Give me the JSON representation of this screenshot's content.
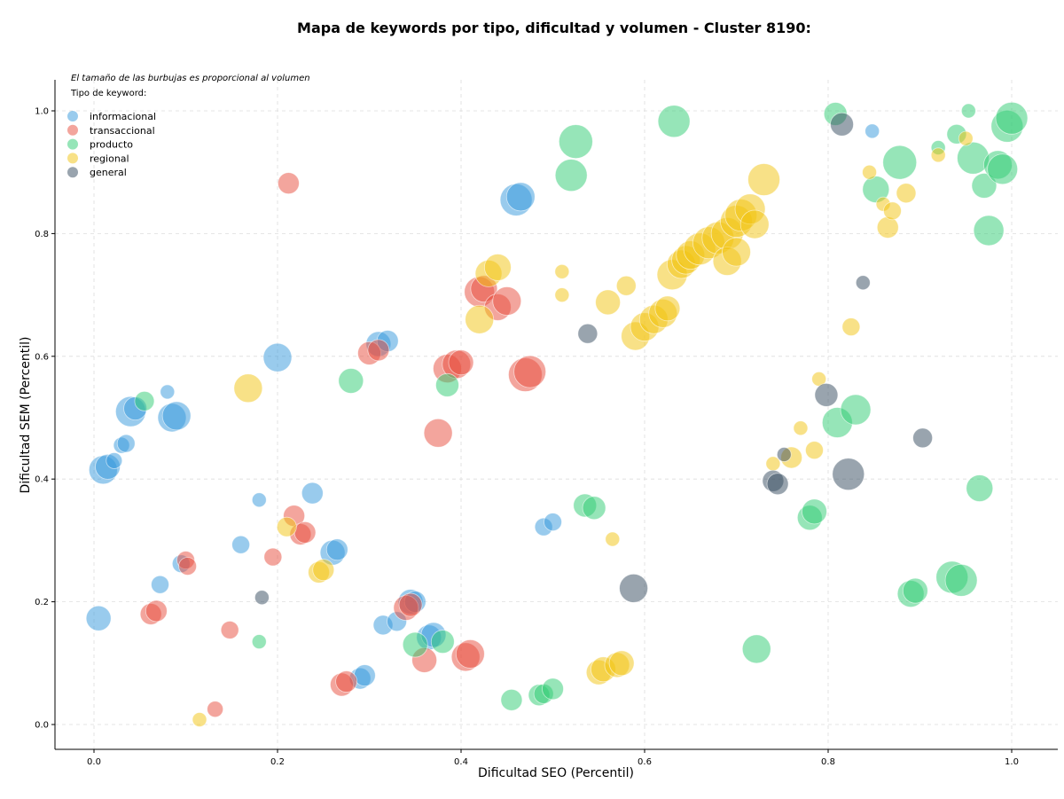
{
  "chart_data": {
    "type": "scatter",
    "title": "Mapa de keywords por tipo, dificultad y volumen - Cluster 8190:",
    "xlabel": "Dificultad SEO (Percentil)",
    "ylabel": "Dificultad SEM (Percentil)",
    "xlim": [
      -0.045,
      1.05
    ],
    "ylim": [
      -0.04,
      1.05
    ],
    "xticks": [
      0.0,
      0.2,
      0.4,
      0.6,
      0.8,
      1.0
    ],
    "yticks": [
      0.0,
      0.2,
      0.4,
      0.6,
      0.8,
      1.0
    ],
    "xtick_labels": [
      "0.0",
      "0.2",
      "0.4",
      "0.6",
      "0.8",
      "1.0"
    ],
    "ytick_labels": [
      "0.0",
      "0.2",
      "0.4",
      "0.6",
      "0.8",
      "1.0"
    ],
    "grid": true,
    "legend_position": "top-left",
    "size_note": "El tamaño de las burbujas es proporcional al volumen",
    "legend_title": "Tipo de keyword:",
    "series": [
      {
        "name": "informacional",
        "color": "#3498db",
        "points": [
          [
            0.005,
            0.173,
            14
          ],
          [
            0.01,
            0.415,
            16
          ],
          [
            0.015,
            0.42,
            14
          ],
          [
            0.022,
            0.43,
            9
          ],
          [
            0.03,
            0.455,
            9
          ],
          [
            0.035,
            0.458,
            10
          ],
          [
            0.04,
            0.51,
            17
          ],
          [
            0.045,
            0.515,
            13
          ],
          [
            0.08,
            0.542,
            8
          ],
          [
            0.085,
            0.5,
            16
          ],
          [
            0.09,
            0.503,
            16
          ],
          [
            0.095,
            0.262,
            10
          ],
          [
            0.072,
            0.228,
            10
          ],
          [
            0.16,
            0.293,
            10
          ],
          [
            0.18,
            0.366,
            8
          ],
          [
            0.2,
            0.598,
            16
          ],
          [
            0.238,
            0.377,
            12
          ],
          [
            0.26,
            0.28,
            14
          ],
          [
            0.265,
            0.285,
            12
          ],
          [
            0.29,
            0.075,
            12
          ],
          [
            0.295,
            0.08,
            12
          ],
          [
            0.31,
            0.62,
            14
          ],
          [
            0.32,
            0.625,
            12
          ],
          [
            0.315,
            0.162,
            11
          ],
          [
            0.33,
            0.168,
            11
          ],
          [
            0.345,
            0.2,
            14
          ],
          [
            0.35,
            0.2,
            12
          ],
          [
            0.365,
            0.142,
            14
          ],
          [
            0.37,
            0.146,
            14
          ],
          [
            0.46,
            0.855,
            18
          ],
          [
            0.465,
            0.86,
            16
          ],
          [
            0.49,
            0.322,
            10
          ],
          [
            0.5,
            0.33,
            10
          ],
          [
            0.848,
            0.967,
            8
          ]
        ]
      },
      {
        "name": "transaccional",
        "color": "#e74c3c",
        "points": [
          [
            0.062,
            0.18,
            12
          ],
          [
            0.068,
            0.185,
            12
          ],
          [
            0.1,
            0.268,
            10
          ],
          [
            0.102,
            0.258,
            10
          ],
          [
            0.148,
            0.154,
            10
          ],
          [
            0.132,
            0.025,
            9
          ],
          [
            0.195,
            0.273,
            10
          ],
          [
            0.212,
            0.882,
            12
          ],
          [
            0.218,
            0.34,
            12
          ],
          [
            0.225,
            0.31,
            12
          ],
          [
            0.23,
            0.313,
            12
          ],
          [
            0.27,
            0.065,
            13
          ],
          [
            0.275,
            0.07,
            12
          ],
          [
            0.3,
            0.605,
            13
          ],
          [
            0.31,
            0.61,
            12
          ],
          [
            0.34,
            0.19,
            14
          ],
          [
            0.345,
            0.195,
            13
          ],
          [
            0.36,
            0.105,
            14
          ],
          [
            0.375,
            0.475,
            16
          ],
          [
            0.385,
            0.58,
            16
          ],
          [
            0.395,
            0.587,
            16
          ],
          [
            0.4,
            0.59,
            14
          ],
          [
            0.405,
            0.11,
            16
          ],
          [
            0.41,
            0.115,
            16
          ],
          [
            0.42,
            0.705,
            17
          ],
          [
            0.425,
            0.71,
            15
          ],
          [
            0.44,
            0.68,
            15
          ],
          [
            0.45,
            0.69,
            16
          ],
          [
            0.47,
            0.57,
            19
          ],
          [
            0.475,
            0.575,
            18
          ]
        ]
      },
      {
        "name": "producto",
        "color": "#2ecc71",
        "points": [
          [
            0.055,
            0.527,
            11
          ],
          [
            0.18,
            0.135,
            8
          ],
          [
            0.28,
            0.56,
            14
          ],
          [
            0.35,
            0.13,
            14
          ],
          [
            0.38,
            0.135,
            13
          ],
          [
            0.385,
            0.553,
            13
          ],
          [
            0.455,
            0.04,
            12
          ],
          [
            0.485,
            0.048,
            12
          ],
          [
            0.49,
            0.05,
            11
          ],
          [
            0.5,
            0.058,
            12
          ],
          [
            0.52,
            0.895,
            18
          ],
          [
            0.525,
            0.95,
            19
          ],
          [
            0.535,
            0.357,
            13
          ],
          [
            0.545,
            0.353,
            13
          ],
          [
            0.632,
            0.983,
            18
          ],
          [
            0.722,
            0.123,
            16
          ],
          [
            0.78,
            0.337,
            14
          ],
          [
            0.785,
            0.347,
            14
          ],
          [
            0.808,
            0.995,
            13
          ],
          [
            0.81,
            0.492,
            17
          ],
          [
            0.83,
            0.513,
            17
          ],
          [
            0.852,
            0.872,
            15
          ],
          [
            0.878,
            0.916,
            19
          ],
          [
            0.89,
            0.213,
            15
          ],
          [
            0.895,
            0.218,
            14
          ],
          [
            0.92,
            0.94,
            8
          ],
          [
            0.94,
            0.962,
            11
          ],
          [
            0.935,
            0.24,
            18
          ],
          [
            0.945,
            0.235,
            18
          ],
          [
            0.953,
            1.0,
            8
          ],
          [
            0.958,
            0.923,
            18
          ],
          [
            0.97,
            0.878,
            14
          ],
          [
            0.975,
            0.805,
            17
          ],
          [
            0.985,
            0.912,
            16
          ],
          [
            0.99,
            0.905,
            17
          ],
          [
            0.965,
            0.385,
            15
          ],
          [
            0.995,
            0.975,
            18
          ],
          [
            1.0,
            0.988,
            18
          ]
        ]
      },
      {
        "name": "regional",
        "color": "#f1c40f",
        "points": [
          [
            0.115,
            0.008,
            8
          ],
          [
            0.168,
            0.548,
            16
          ],
          [
            0.21,
            0.322,
            11
          ],
          [
            0.245,
            0.248,
            12
          ],
          [
            0.25,
            0.252,
            12
          ],
          [
            0.42,
            0.66,
            16
          ],
          [
            0.43,
            0.735,
            15
          ],
          [
            0.44,
            0.745,
            15
          ],
          [
            0.51,
            0.738,
            8
          ],
          [
            0.51,
            0.7,
            8
          ],
          [
            0.55,
            0.085,
            14
          ],
          [
            0.555,
            0.09,
            14
          ],
          [
            0.56,
            0.688,
            14
          ],
          [
            0.565,
            0.302,
            8
          ],
          [
            0.57,
            0.097,
            14
          ],
          [
            0.575,
            0.1,
            14
          ],
          [
            0.58,
            0.715,
            11
          ],
          [
            0.59,
            0.633,
            16
          ],
          [
            0.6,
            0.648,
            16
          ],
          [
            0.61,
            0.66,
            16
          ],
          [
            0.62,
            0.67,
            16
          ],
          [
            0.625,
            0.678,
            14
          ],
          [
            0.63,
            0.733,
            17
          ],
          [
            0.64,
            0.75,
            16
          ],
          [
            0.645,
            0.757,
            16
          ],
          [
            0.65,
            0.765,
            16
          ],
          [
            0.66,
            0.775,
            18
          ],
          [
            0.67,
            0.785,
            18
          ],
          [
            0.68,
            0.793,
            18
          ],
          [
            0.69,
            0.8,
            18
          ],
          [
            0.69,
            0.755,
            16
          ],
          [
            0.7,
            0.77,
            16
          ],
          [
            0.7,
            0.82,
            18
          ],
          [
            0.705,
            0.83,
            18
          ],
          [
            0.715,
            0.84,
            17
          ],
          [
            0.72,
            0.815,
            16
          ],
          [
            0.73,
            0.888,
            18
          ],
          [
            0.74,
            0.425,
            8
          ],
          [
            0.76,
            0.435,
            12
          ],
          [
            0.77,
            0.483,
            8
          ],
          [
            0.785,
            0.447,
            10
          ],
          [
            0.79,
            0.563,
            8
          ],
          [
            0.825,
            0.648,
            10
          ],
          [
            0.845,
            0.9,
            8
          ],
          [
            0.86,
            0.848,
            8
          ],
          [
            0.865,
            0.81,
            12
          ],
          [
            0.87,
            0.837,
            10
          ],
          [
            0.885,
            0.866,
            11
          ],
          [
            0.92,
            0.928,
            8
          ],
          [
            0.95,
            0.955,
            8
          ]
        ]
      },
      {
        "name": "general",
        "color": "#34495e",
        "points": [
          [
            0.183,
            0.207,
            8
          ],
          [
            0.538,
            0.637,
            11
          ],
          [
            0.588,
            0.222,
            16
          ],
          [
            0.74,
            0.397,
            12
          ],
          [
            0.745,
            0.392,
            12
          ],
          [
            0.752,
            0.44,
            8
          ],
          [
            0.798,
            0.537,
            13
          ],
          [
            0.815,
            0.978,
            13
          ],
          [
            0.822,
            0.408,
            18
          ],
          [
            0.838,
            0.72,
            8
          ],
          [
            0.903,
            0.467,
            11
          ]
        ]
      }
    ]
  }
}
